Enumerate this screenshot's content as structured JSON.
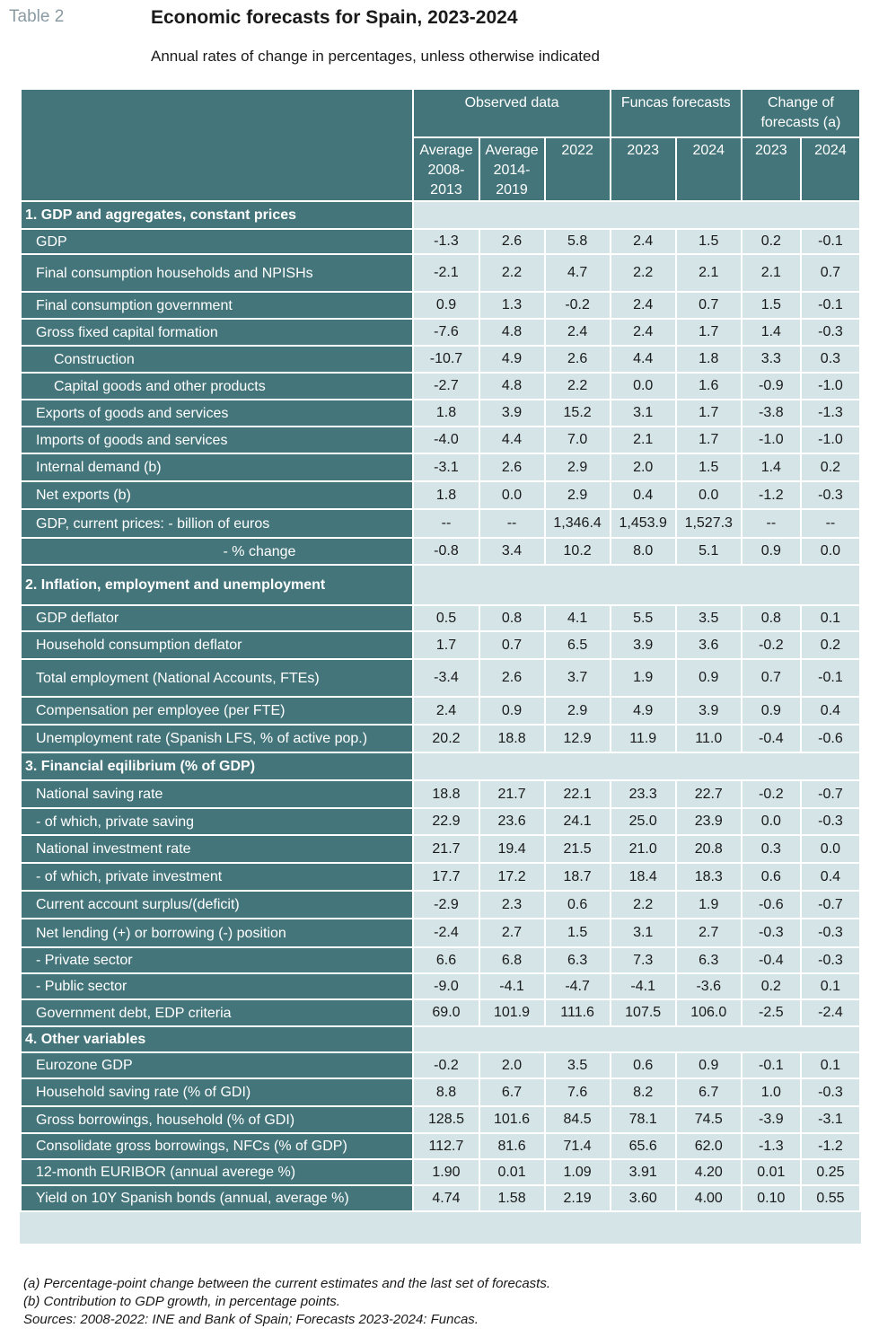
{
  "table_label": "Table 2",
  "title": "Economic forecasts for Spain, 2023-2024",
  "subtitle": "Annual rates of change in percentages, unless otherwise indicated",
  "groups": {
    "observed": "Observed data",
    "funcas": "Funcas forecasts",
    "change": "Change of forecasts (a)"
  },
  "columns": [
    "Average 2008-2013",
    "Average 2014-2019",
    "2022",
    "2023",
    "2024",
    "2023",
    "2024"
  ],
  "sections": [
    {
      "title": "1. GDP and aggregates, constant prices",
      "rows": [
        {
          "label": "GDP",
          "values": [
            "-1.3",
            "2.6",
            "5.8",
            "2.4",
            "1.5",
            "0.2",
            "-0.1"
          ]
        },
        {
          "label": "Final consumption households and NPISHs",
          "values": [
            "-2.1",
            "2.2",
            "4.7",
            "2.2",
            "2.1",
            "2.1",
            "0.7"
          ]
        },
        {
          "label": "Final consumption government",
          "values": [
            "0.9",
            "1.3",
            "-0.2",
            "2.4",
            "0.7",
            "1.5",
            "-0.1"
          ]
        },
        {
          "label": "Gross fixed capital formation",
          "values": [
            "-7.6",
            "4.8",
            "2.4",
            "2.4",
            "1.7",
            "1.4",
            "-0.3"
          ]
        },
        {
          "label": "Construction",
          "values": [
            "-10.7",
            "4.9",
            "2.6",
            "4.4",
            "1.8",
            "3.3",
            "0.3"
          ]
        },
        {
          "label": "Capital goods and other products",
          "values": [
            "-2.7",
            "4.8",
            "2.2",
            "0.0",
            "1.6",
            "-0.9",
            "-1.0"
          ]
        },
        {
          "label": "Exports of goods and services",
          "values": [
            "1.8",
            "3.9",
            "15.2",
            "3.1",
            "1.7",
            "-3.8",
            "-1.3"
          ]
        },
        {
          "label": "Imports of goods and services",
          "values": [
            "-4.0",
            "4.4",
            "7.0",
            "2.1",
            "1.7",
            "-1.0",
            "-1.0"
          ]
        },
        {
          "label": "Internal demand (b)",
          "values": [
            "-3.1",
            "2.6",
            "2.9",
            "2.0",
            "1.5",
            "1.4",
            "0.2"
          ]
        },
        {
          "label": "Net exports (b)",
          "values": [
            "1.8",
            "0.0",
            "2.9",
            "0.4",
            "0.0",
            "-1.2",
            "-0.3"
          ]
        },
        {
          "label": "GDP, current prices: - billion of euros",
          "values": [
            "--",
            "--",
            "1,346.4",
            "1,453.9",
            "1,527.3",
            "--",
            "--"
          ]
        },
        {
          "label": "- % change",
          "values": [
            "-0.8",
            "3.4",
            "10.2",
            "8.0",
            "5.1",
            "0.9",
            "0.0"
          ]
        }
      ]
    },
    {
      "title": "2. Inflation, employment and unemployment",
      "rows": [
        {
          "label": "GDP deflator",
          "values": [
            "0.5",
            "0.8",
            "4.1",
            "5.5",
            "3.5",
            "0.8",
            "0.1"
          ]
        },
        {
          "label": "Household consumption deflator",
          "values": [
            "1.7",
            "0.7",
            "6.5",
            "3.9",
            "3.6",
            "-0.2",
            "0.2"
          ]
        },
        {
          "label": "Total employment (National Accounts, FTEs)",
          "values": [
            "-3.4",
            "2.6",
            "3.7",
            "1.9",
            "0.9",
            "0.7",
            "-0.1"
          ]
        },
        {
          "label": "Compensation per employee (per FTE)",
          "values": [
            "2.4",
            "0.9",
            "2.9",
            "4.9",
            "3.9",
            "0.9",
            "0.4"
          ]
        },
        {
          "label": "Unemployment rate (Spanish LFS, % of active pop.)",
          "values": [
            "20.2",
            "18.8",
            "12.9",
            "11.9",
            "11.0",
            "-0.4",
            "-0.6"
          ]
        }
      ]
    },
    {
      "title": "3. Financial eqilibrium (% of GDP)",
      "rows": [
        {
          "label": "National saving rate",
          "values": [
            "18.8",
            "21.7",
            "22.1",
            "23.3",
            "22.7",
            "-0.2",
            "-0.7"
          ]
        },
        {
          "label": "- of which, private saving",
          "values": [
            "22.9",
            "23.6",
            "24.1",
            "25.0",
            "23.9",
            "0.0",
            "-0.3"
          ]
        },
        {
          "label": "National investment rate",
          "values": [
            "21.7",
            "19.4",
            "21.5",
            "21.0",
            "20.8",
            "0.3",
            "0.0"
          ]
        },
        {
          "label": "- of which, private investment",
          "values": [
            "17.7",
            "17.2",
            "18.7",
            "18.4",
            "18.3",
            "0.6",
            "0.4"
          ]
        },
        {
          "label": "Current account surplus/(deficit)",
          "values": [
            "-2.9",
            "2.3",
            "0.6",
            "2.2",
            "1.9",
            "-0.6",
            "-0.7"
          ]
        },
        {
          "label": "Net lending (+) or borrowing (-) position",
          "values": [
            "-2.4",
            "2.7",
            "1.5",
            "3.1",
            "2.7",
            "-0.3",
            "-0.3"
          ]
        },
        {
          "label": "- Private sector",
          "values": [
            "6.6",
            "6.8",
            "6.3",
            "7.3",
            "6.3",
            "-0.4",
            "-0.3"
          ]
        },
        {
          "label": "- Public sector",
          "values": [
            "-9.0",
            "-4.1",
            "-4.7",
            "-4.1",
            "-3.6",
            "0.2",
            "0.1"
          ]
        },
        {
          "label": "Government debt, EDP criteria",
          "values": [
            "69.0",
            "101.9",
            "111.6",
            "107.5",
            "106.0",
            "-2.5",
            "-2.4"
          ]
        }
      ]
    },
    {
      "title": "4. Other variables",
      "rows": [
        {
          "label": "Eurozone GDP",
          "values": [
            "-0.2",
            "2.0",
            "3.5",
            "0.6",
            "0.9",
            "-0.1",
            "0.1"
          ]
        },
        {
          "label": "Household saving rate (% of GDI)",
          "values": [
            "8.8",
            "6.7",
            "7.6",
            "8.2",
            "6.7",
            "1.0",
            "-0.3"
          ]
        },
        {
          "label": "Gross borrowings, household (% of GDI)",
          "values": [
            "128.5",
            "101.6",
            "84.5",
            "78.1",
            "74.5",
            "-3.9",
            "-3.1"
          ]
        },
        {
          "label": "Consolidate gross borrowings, NFCs    (% of GDP)",
          "values": [
            "112.7",
            "81.6",
            "71.4",
            "65.6",
            "62.0",
            "-1.3",
            "-1.2"
          ]
        },
        {
          "label": "12-month EURIBOR (annual averege %)",
          "values": [
            "1.90",
            "0.01",
            "1.09",
            "3.91",
            "4.20",
            "0.01",
            "0.25"
          ]
        },
        {
          "label": "Yield on 10Y Spanish bonds (annual, average %)",
          "values": [
            "4.74",
            "1.58",
            "2.19",
            "3.60",
            "4.00",
            "0.10",
            "0.55"
          ]
        }
      ]
    }
  ],
  "footnotes": [
    "(a) Percentage-point change between the current estimates and the last set of forecasts.",
    "(b) Contribution to GDP growth, in percentage points.",
    "Sources: 2008-2022: INE and Bank of Spain; Forecasts 2023-2024: Funcas."
  ]
}
